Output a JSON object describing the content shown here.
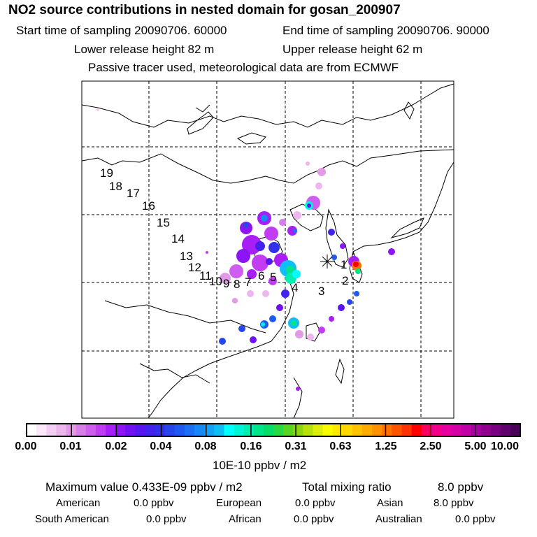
{
  "header": {
    "title": "NO2 source contributions in nested domain for gosan_200907",
    "start_time": "Start time of sampling 20090706. 60000",
    "end_time": "End time of sampling 20090706. 90000",
    "lower_height": "Lower release height   82 m",
    "upper_height": "Upper release height   62 m",
    "note": "Passive tracer used, meteorological data are from ECMWF"
  },
  "trajectory_labels": [
    "1",
    "2",
    "3",
    "4",
    "5",
    "6",
    "7",
    "8",
    "9",
    "10",
    "11",
    "12",
    "13",
    "14",
    "15",
    "16",
    "17",
    "18",
    "19"
  ],
  "colorbar": {
    "ticks": [
      "0.00",
      "0.01",
      "0.02",
      "0.04",
      "0.08",
      "0.16",
      "0.31",
      "0.63",
      "1.25",
      "2.50",
      "5.00",
      "10.00"
    ],
    "colors": [
      "#ffffff",
      "#fbe8fb",
      "#f4cff4",
      "#edb6ee",
      "#e29ae6",
      "#d97ee9",
      "#cf5ef0",
      "#c23cf4",
      "#a81ef7",
      "#8c14f5",
      "#6f12f1",
      "#5815ee",
      "#4322ec",
      "#3131ea",
      "#2746ea",
      "#1f5af0",
      "#1b70f3",
      "#1589f6",
      "#12a2f8",
      "#11bdf7",
      "#00ffff",
      "#00f5d8",
      "#00eeb0",
      "#00e58a",
      "#05dd64",
      "#2ad940",
      "#58d51f",
      "#8cd510",
      "#b8e00c",
      "#dcef0a",
      "#fafc00",
      "#fdea00",
      "#ffd800",
      "#ffc200",
      "#ffaa00",
      "#ff9000",
      "#ff7200",
      "#ff5400",
      "#ff3300",
      "#ff0000",
      "#fb0060",
      "#f3008a",
      "#e600a0",
      "#d400a8",
      "#c000a8",
      "#a800a0",
      "#920090",
      "#7a0082",
      "#620070",
      "#4a0058"
    ],
    "unit": "10E-10 ppbv / m2"
  },
  "summary": {
    "max_value": "Maximum value  0.433E-09 ppbv / m2",
    "total_label": "Total mixing ratio",
    "total_value": "8.0 ppbv"
  },
  "regions": [
    {
      "name": "American",
      "value": "0.0 ppbv"
    },
    {
      "name": "European",
      "value": "0.0 ppbv"
    },
    {
      "name": "Asian",
      "value": "8.0 ppbv"
    },
    {
      "name": "South American",
      "value": "0.0 ppbv"
    },
    {
      "name": "African",
      "value": "0.0 ppbv"
    },
    {
      "name": "Australian",
      "value": "0.0 ppbv"
    }
  ]
}
